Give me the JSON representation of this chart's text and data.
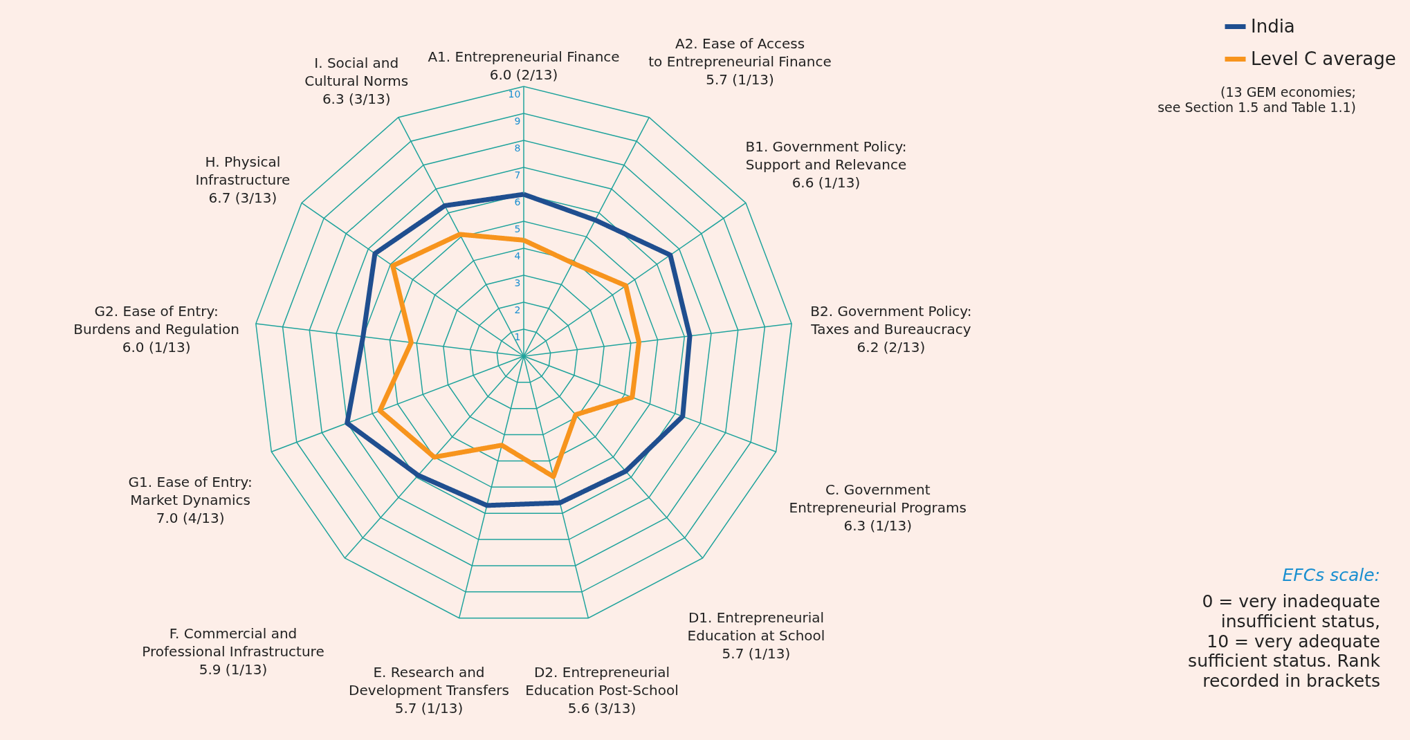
{
  "chart_data": {
    "type": "radar",
    "categories": [
      "A1. Entrepreneurial Finance\n6.0 (2/13)",
      "A2. Ease of Access\nto Entrepreneurial Finance\n5.7 (1/13)",
      "B1. Government Policy:\nSupport and Relevance\n6.6 (1/13)",
      "B2. Government Policy:\nTaxes and Bureaucracy\n6.2 (2/13)",
      "C. Government\nEntrepreneurial Programs\n6.3 (1/13)",
      "D1. Entrepreneurial\nEducation at School\n5.7 (1/13)",
      "D2. Entrepreneurial\nEducation Post-School\n5.6 (3/13)",
      "E. Research and\nDevelopment Transfers\n5.7 (1/13)",
      "F. Commercial and\nProfessional Infrastructure\n5.9 (1/13)",
      "G1. Ease of Entry:\nMarket Dynamics\n7.0 (4/13)",
      "G2. Ease of Entry:\nBurdens and Regulation\n6.0 (1/13)",
      "H. Physical\nInfrastructure\n6.7 (3/13)",
      "I. Social and\nCultural Norms\n6.3 (3/13)"
    ],
    "series": [
      {
        "name": "India",
        "color": "#1f4e8f",
        "values": [
          6.0,
          5.7,
          6.6,
          6.2,
          6.3,
          5.7,
          5.6,
          5.7,
          5.9,
          7.0,
          6.0,
          6.7,
          6.3
        ]
      },
      {
        "name": "Level C average",
        "color": "#f7941d",
        "values": [
          4.3,
          3.9,
          4.6,
          4.3,
          4.3,
          2.9,
          4.6,
          3.4,
          5.0,
          5.7,
          4.2,
          5.9,
          5.1
        ]
      }
    ],
    "ylim": [
      0,
      10
    ],
    "yticks": [
      1,
      2,
      3,
      4,
      5,
      6,
      7,
      8,
      9,
      10
    ],
    "legend": "top right",
    "grid": true,
    "line_style": "solid",
    "marker": "none",
    "annotations": [
      "(13 GEM economies;\nsee Section 1.5 and Table 1.1)",
      "EFCs scale:",
      "0 = very inadequate\ninsufficient status,\n10 = very adequate\nsufficient status. Rank\nrecorded in brackets"
    ]
  }
}
